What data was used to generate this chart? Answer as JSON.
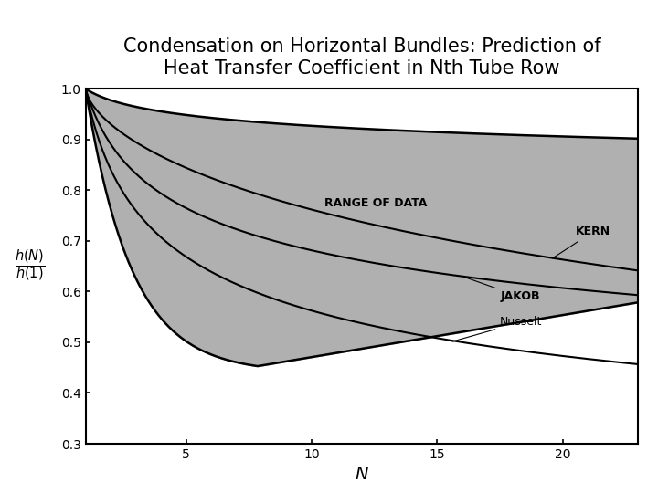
{
  "title_line1": "Condensation on Horizontal Bundles: Prediction of",
  "title_line2": "Heat Transfer Coefficient in Nth Tube Row",
  "xlabel": "N",
  "xlim": [
    1,
    23
  ],
  "ylim": [
    0.3,
    1.0
  ],
  "xticks": [
    5,
    10,
    15,
    20
  ],
  "yticks": [
    0.3,
    0.4,
    0.5,
    0.6,
    0.7,
    0.8,
    0.9,
    1.0
  ],
  "range_label": "RANGE OF DATA",
  "kern_label": "KERN",
  "jakob_label": "JAKOB",
  "nusselt_label": "Nusselt",
  "background_color": "#ffffff",
  "fill_color": "#b0b0b0",
  "line_color": "#000000",
  "title_fontsize": 15,
  "label_fontsize": 9
}
